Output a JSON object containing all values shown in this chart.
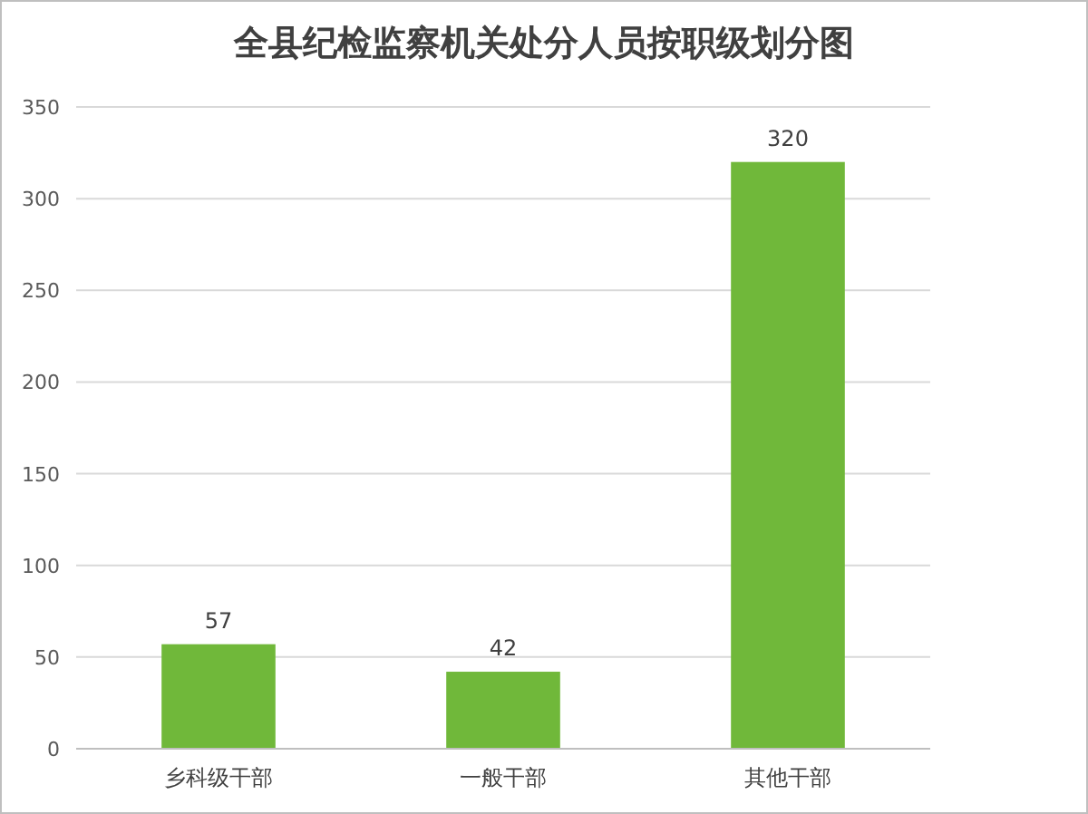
{
  "chart_data": {
    "type": "bar",
    "title": "全县纪检监察机关处分人员按职级划分图",
    "categories": [
      "乡科级干部",
      "一般干部",
      "其他干部"
    ],
    "values": [
      57,
      42,
      320
    ],
    "color": "#70b83a",
    "ylim": [
      0,
      350
    ],
    "yticks": [
      0,
      50,
      100,
      150,
      200,
      250,
      300,
      350
    ],
    "grid": "y",
    "data_labels": true
  }
}
